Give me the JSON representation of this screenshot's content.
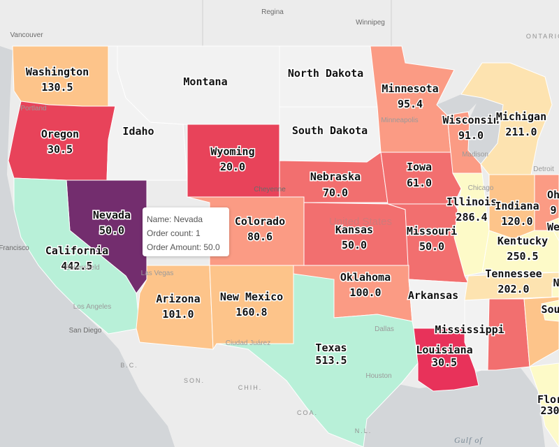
{
  "map": {
    "states": [
      {
        "id": "washington",
        "name": "Washington",
        "value": "130.5",
        "color": "#fdc48a"
      },
      {
        "id": "oregon",
        "name": "Oregon",
        "value": "30.5",
        "color": "#e8435a"
      },
      {
        "id": "idaho",
        "name": "Idaho",
        "value": "",
        "color": "#f2f2f2"
      },
      {
        "id": "montana",
        "name": "Montana",
        "value": "",
        "color": "#f2f2f2"
      },
      {
        "id": "north-dakota",
        "name": "North Dakota",
        "value": "",
        "color": "#f2f2f2"
      },
      {
        "id": "south-dakota",
        "name": "South Dakota",
        "value": "",
        "color": "#f2f2f2"
      },
      {
        "id": "minnesota",
        "name": "Minnesota",
        "value": "95.4",
        "color": "#fb9b84"
      },
      {
        "id": "wisconsin",
        "name": "Wisconsin",
        "value": "91.0",
        "color": "#fb9b84"
      },
      {
        "id": "michigan",
        "name": "Michigan",
        "value": "211.0",
        "color": "#fde3b0"
      },
      {
        "id": "wyoming",
        "name": "Wyoming",
        "value": "20.0",
        "color": "#e8435a"
      },
      {
        "id": "nevada",
        "name": "Nevada",
        "value": "50.0",
        "color": "#732d6e"
      },
      {
        "id": "california",
        "name": "California",
        "value": "442.5",
        "color": "#b8f0d8"
      },
      {
        "id": "nebraska",
        "name": "Nebraska",
        "value": "70.0",
        "color": "#f26f6f"
      },
      {
        "id": "iowa",
        "name": "Iowa",
        "value": "61.0",
        "color": "#f26f6f"
      },
      {
        "id": "illinois",
        "name": "Illinois",
        "value": "286.4",
        "color": "#fdfac8"
      },
      {
        "id": "indiana",
        "name": "Indiana",
        "value": "120.0",
        "color": "#fdc48a"
      },
      {
        "id": "ohio",
        "name": "Oh",
        "value": "9",
        "color": "#fb9b84"
      },
      {
        "id": "colorado",
        "name": "Colorado",
        "value": "80.6",
        "color": "#fb9b84"
      },
      {
        "id": "kansas",
        "name": "Kansas",
        "value": "50.0",
        "color": "#f26f6f"
      },
      {
        "id": "missouri",
        "name": "Missouri",
        "value": "50.0",
        "color": "#f26f6f"
      },
      {
        "id": "kentucky",
        "name": "Kentucky",
        "value": "250.5",
        "color": "#fdfac8"
      },
      {
        "id": "west-virginia",
        "name": "We",
        "value": "",
        "color": "#fdfac8"
      },
      {
        "id": "arizona",
        "name": "Arizona",
        "value": "101.0",
        "color": "#fdc48a"
      },
      {
        "id": "new-mexico",
        "name": "New Mexico",
        "value": "160.8",
        "color": "#fdc48a"
      },
      {
        "id": "oklahoma",
        "name": "Oklahoma",
        "value": "100.0",
        "color": "#fb9b84"
      },
      {
        "id": "arkansas",
        "name": "Arkansas",
        "value": "",
        "color": "#f2f2f2"
      },
      {
        "id": "tennessee",
        "name": "Tennessee",
        "value": "202.0",
        "color": "#fde3b0"
      },
      {
        "id": "north-carolina",
        "name": "N",
        "value": "",
        "color": "#fdfac8"
      },
      {
        "id": "mississippi",
        "name": "Mississippi",
        "value": "",
        "color": "#f2f2f2"
      },
      {
        "id": "alabama",
        "name": "",
        "value": "",
        "color": "#f26f6f"
      },
      {
        "id": "georgia",
        "name": "",
        "value": "",
        "color": "#fdc48a"
      },
      {
        "id": "south-carolina",
        "name": "Sou",
        "value": "",
        "color": "#fdfac8"
      },
      {
        "id": "texas",
        "name": "Texas",
        "value": "513.5",
        "color": "#b8f0d8"
      },
      {
        "id": "louisiana",
        "name": "Louisiana",
        "value": "30.5",
        "color": "#e8325a"
      },
      {
        "id": "florida",
        "name": "Flor",
        "value": "230",
        "color": "#fdfac8"
      }
    ],
    "places": {
      "regina": "Regina",
      "winnipeg": "Winnipeg",
      "vancouver": "Vancouver",
      "portland": "Portland",
      "minneapolis": "Minneapolis",
      "madison": "Madison",
      "detroit": "Detroit",
      "chicago": "Chicago",
      "cheyenne": "Cheyenne",
      "san_francisco": "Francisco",
      "las_vegas": "Las Vegas",
      "bakersfield": "Bakersfield",
      "los_angeles": "Los Angeles",
      "san_diego": "San Diego",
      "ciudad_juarez": "Ciudad Juárez",
      "dallas": "Dallas",
      "houston": "Houston",
      "ontario": "ONTARIO",
      "bc": "B.C.",
      "son": "SON.",
      "chih": "CHIH.",
      "coa": "COA.",
      "nl": "N.L.",
      "united_states": "United States",
      "gulf_of": "Gulf of"
    }
  },
  "tooltip": {
    "name_line": "Name: Nevada",
    "count_line": "Order count: 1",
    "amount_line": "Order Amount: 50.0"
  }
}
